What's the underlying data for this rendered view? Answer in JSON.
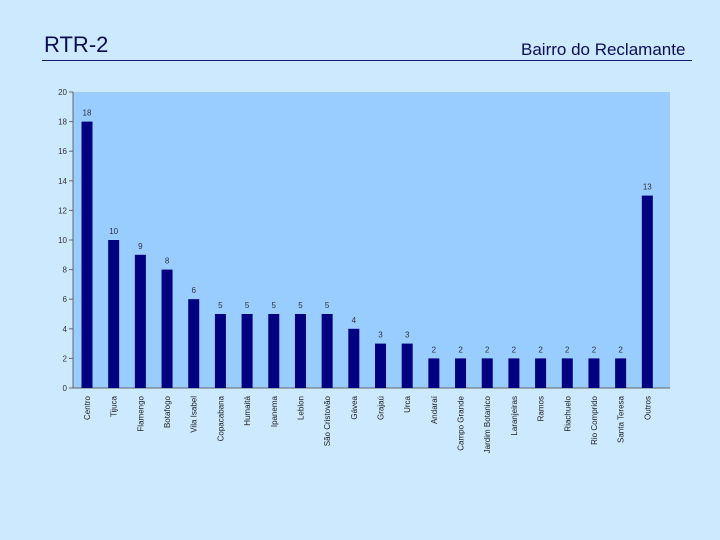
{
  "slide": {
    "title": "RTR-2",
    "subtitle": "Bairro do Reclamante"
  },
  "colors": {
    "background": "#cce9fe",
    "plot_area": "#99ccff",
    "bar": "#000080"
  },
  "chart_data": {
    "type": "bar",
    "categories": [
      "Centro",
      "Tijuca",
      "Flamengo",
      "Botafogo",
      "Vila Isabel",
      "Copacabana",
      "Humaitá",
      "Ipanema",
      "Leblon",
      "São Cristovão",
      "Gávea",
      "Grajaú",
      "Urca",
      "Andaraí",
      "Campo Grande",
      "Jardim Botanico",
      "Laranjeiras",
      "Ramos",
      "Riachuelo",
      "Rio Comprido",
      "Santa Teresa",
      "Outros"
    ],
    "values": [
      18,
      10,
      9,
      8,
      6,
      5,
      5,
      5,
      5,
      5,
      4,
      3,
      3,
      2,
      2,
      2,
      2,
      2,
      2,
      2,
      2,
      13
    ],
    "data_labels": [
      "18",
      "10",
      "9",
      "8",
      "6",
      "5",
      "5",
      "5",
      "5",
      "5",
      "4",
      "3",
      "3",
      "2",
      "2",
      "2",
      "2",
      "2",
      "2",
      "2",
      "2",
      "13"
    ],
    "yticks": [
      "0",
      "2",
      "4",
      "6",
      "8",
      "10",
      "12",
      "14",
      "16",
      "18",
      "20"
    ],
    "ylim": [
      0,
      20
    ],
    "grid": false,
    "legend": "none"
  }
}
